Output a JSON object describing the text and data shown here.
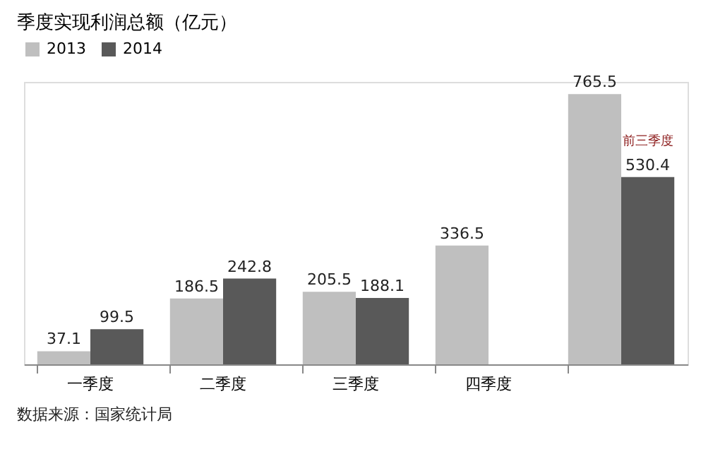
{
  "chart_data": {
    "type": "bar",
    "title": "季度实现利润总额（亿元）",
    "categories": [
      "一季度",
      "二季度",
      "三季度",
      "四季度",
      null
    ],
    "series": [
      {
        "name": "2013",
        "color": "#bfbfbf",
        "values": [
          37.1,
          186.5,
          205.5,
          336.5,
          765.5
        ]
      },
      {
        "name": "2014",
        "color": "#595959",
        "values": [
          99.5,
          242.8,
          188.1,
          null,
          530.4
        ]
      }
    ],
    "data_labels": true,
    "legend": "top",
    "grid": false,
    "annotations": [
      {
        "text": "前三季度",
        "y": 530.4
      },
      "数据来源：国家统计局"
    ]
  }
}
